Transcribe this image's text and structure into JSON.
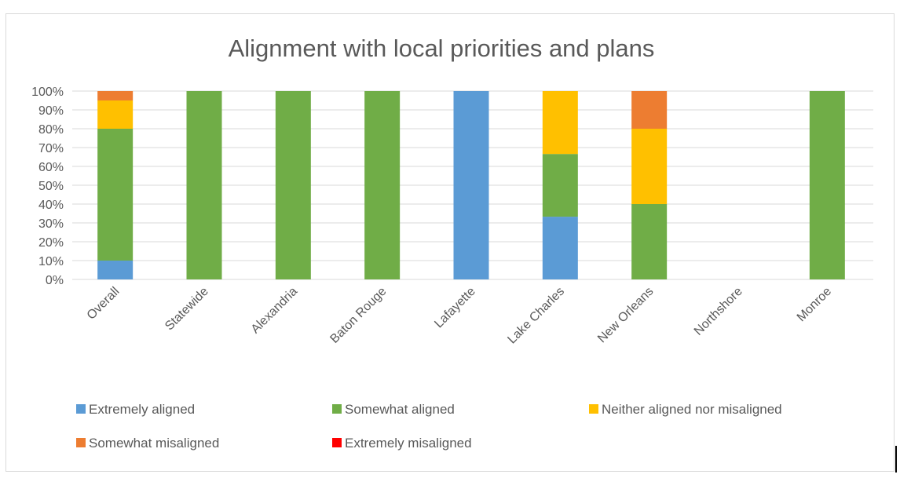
{
  "chart_data": {
    "type": "bar",
    "stacked": true,
    "title": "Alignment with local priorities and plans",
    "xlabel": "",
    "ylabel": "",
    "ylim": [
      0,
      100
    ],
    "yticks": [
      "0%",
      "10%",
      "20%",
      "30%",
      "40%",
      "50%",
      "60%",
      "70%",
      "80%",
      "90%",
      "100%"
    ],
    "grid": true,
    "legend_position": "bottom",
    "categories": [
      "Overall",
      "Statewide",
      "Alexandria",
      "Baton Rouge",
      "Lafayette",
      "Lake Charles",
      "New Orleans",
      "Northshore",
      "Monroe"
    ],
    "series": [
      {
        "name": "Extremely aligned",
        "color": "#5b9bd5",
        "values": [
          10,
          0,
          0,
          0,
          100,
          33.3,
          0,
          0,
          0
        ]
      },
      {
        "name": "Somewhat aligned",
        "color": "#70ad47",
        "values": [
          70,
          100,
          100,
          100,
          0,
          33.3,
          40,
          0,
          100
        ]
      },
      {
        "name": "Neither aligned nor misaligned",
        "color": "#ffc000",
        "values": [
          15,
          0,
          0,
          0,
          0,
          33.4,
          40,
          0,
          0
        ]
      },
      {
        "name": "Somewhat misaligned",
        "color": "#ed7d31",
        "values": [
          5,
          0,
          0,
          0,
          0,
          0,
          20,
          0,
          0
        ]
      },
      {
        "name": "Extremely misaligned",
        "color": "#ff0000",
        "values": [
          0,
          0,
          0,
          0,
          0,
          0,
          0,
          0,
          0
        ]
      }
    ]
  }
}
